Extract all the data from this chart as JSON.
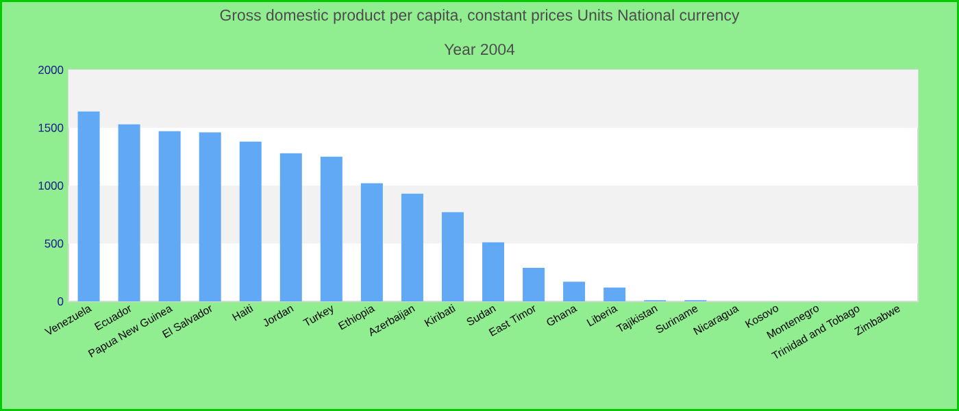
{
  "chart_data": {
    "type": "bar",
    "title": "Gross domestic product per capita, constant prices Units National currency",
    "subtitle": "Year 2004",
    "categories": [
      "Venezuela",
      "Ecuador",
      "Papua New Guinea",
      "El Salvador",
      "Haiti",
      "Jordan",
      "Turkey",
      "Ethiopia",
      "Azerbaijan",
      "Kiribati",
      "Sudan",
      "East Timor",
      "Ghana",
      "Liberia",
      "Tajikistan",
      "Suriname",
      "Nicaragua",
      "Kosovo",
      "Montenegro",
      "Trinidad and Tobago",
      "Zimbabwe"
    ],
    "values": [
      1640,
      1530,
      1470,
      1460,
      1380,
      1280,
      1250,
      1020,
      930,
      770,
      510,
      290,
      170,
      120,
      10,
      10,
      null,
      null,
      null,
      null,
      null
    ],
    "color": "#62a9f5",
    "ylim": [
      0,
      2000
    ],
    "yticks": [
      0,
      500,
      1000,
      1500,
      2000
    ]
  }
}
